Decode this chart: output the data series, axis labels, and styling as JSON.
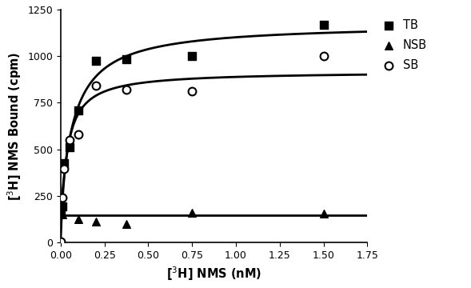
{
  "TB_x": [
    0.0,
    0.01,
    0.02,
    0.05,
    0.1,
    0.2,
    0.375,
    0.75,
    1.5
  ],
  "TB_y": [
    170,
    195,
    425,
    510,
    710,
    975,
    985,
    1000,
    1170
  ],
  "NSB_x": [
    0.01,
    0.1,
    0.2,
    0.375,
    0.75,
    1.5
  ],
  "NSB_y": [
    150,
    125,
    110,
    100,
    160,
    155
  ],
  "SB_x": [
    0.0,
    0.01,
    0.02,
    0.05,
    0.1,
    0.2,
    0.375,
    0.75,
    1.5
  ],
  "SB_y": [
    5,
    240,
    395,
    550,
    580,
    840,
    820,
    810,
    1000
  ],
  "xlabel": "[$^{3}$H] NMS (nM)",
  "ylabel": "[$^{3}$H] NMS Bound (cpm)",
  "xlim": [
    0,
    1.75
  ],
  "ylim": [
    0,
    1250
  ],
  "xticks": [
    0.0,
    0.25,
    0.5,
    0.75,
    1.0,
    1.25,
    1.5,
    1.75
  ],
  "yticks": [
    0,
    250,
    500,
    750,
    1000,
    1250
  ],
  "legend_labels": [
    "TB",
    "NSB",
    "SB"
  ],
  "color": "#000000",
  "background": "#ffffff",
  "TB_Bmax": 1000.0,
  "TB_Kd": 0.055,
  "TB_base": 165.0,
  "NSB_level": 145.0,
  "SB_Bmax": 1020.0,
  "SB_Kd": 0.08
}
